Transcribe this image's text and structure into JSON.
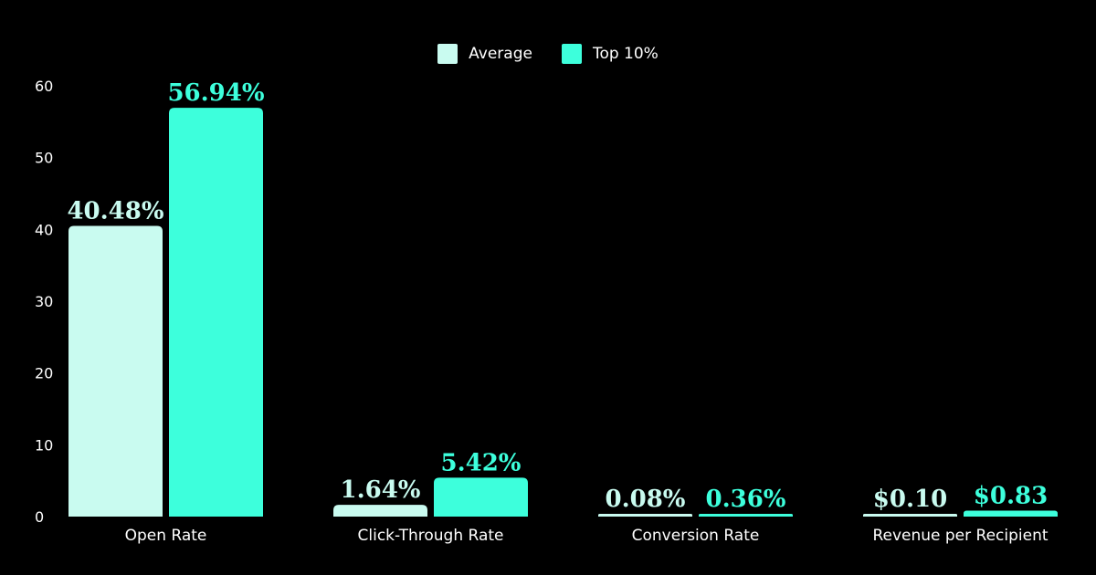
{
  "colors": {
    "background": "#000000",
    "average": "#c9fbf0",
    "top10": "#3dffdc",
    "text": "#ffffff"
  },
  "legend": {
    "placement": "top-center",
    "items": [
      {
        "label": "Average",
        "color": "#c9fbf0"
      },
      {
        "label": "Top 10%",
        "color": "#3dffdc"
      }
    ]
  },
  "chart_data": {
    "type": "bar",
    "title": "",
    "xlabel": "",
    "ylabel": "",
    "ylim": [
      0,
      60
    ],
    "yticks": [
      0,
      10,
      20,
      30,
      40,
      50,
      60
    ],
    "grid": false,
    "categories": [
      "Open Rate",
      "Click-Through Rate",
      "Conversion Rate",
      "Revenue per Recipient"
    ],
    "series": [
      {
        "name": "Average",
        "color": "#c9fbf0",
        "values": [
          40.48,
          1.64,
          0.08,
          0.1
        ],
        "labels": [
          "40.48%",
          "1.64%",
          "0.08%",
          "$0.10"
        ]
      },
      {
        "name": "Top 10%",
        "color": "#3dffdc",
        "values": [
          56.94,
          5.42,
          0.36,
          0.83
        ],
        "labels": [
          "56.94%",
          "5.42%",
          "0.36%",
          "$0.83"
        ]
      }
    ]
  }
}
